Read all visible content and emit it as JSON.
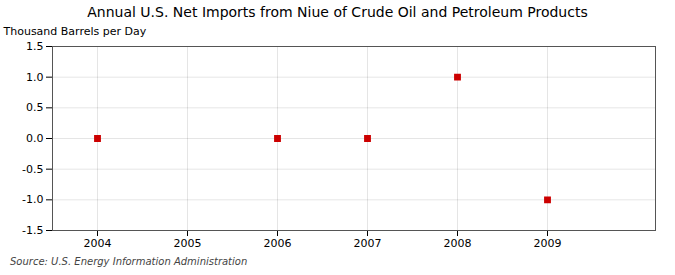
{
  "chart_data": {
    "type": "scatter",
    "title": "Annual U.S. Net Imports from Niue of Crude Oil and Petroleum Products",
    "ylabel": "Thousand Barrels per Day",
    "caption": "Source: U.S. Energy Information Administration",
    "x": [
      2004,
      2006,
      2007,
      2008,
      2009
    ],
    "values": [
      0.0,
      0.0,
      0.0,
      1.0,
      -1.0
    ],
    "color": "#cc0000",
    "marker": "square",
    "xlim": [
      2003.5,
      2010.2
    ],
    "xticks": [
      2004,
      2005,
      2006,
      2007,
      2008,
      2009
    ],
    "ylim": [
      -1.5,
      1.5
    ],
    "yticks": [
      -1.5,
      {
        "value": -1,
        "label": "-1.0"
      },
      -0.5,
      {
        "value": 0,
        "label": "0.0"
      },
      0.5,
      {
        "value": 1,
        "label": "1.0"
      },
      1.5
    ],
    "grid": true
  }
}
